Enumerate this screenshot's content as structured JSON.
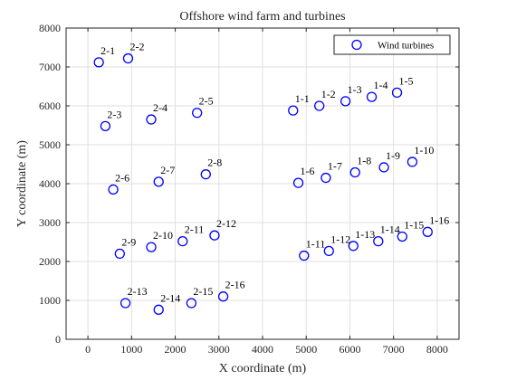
{
  "chart_data": {
    "type": "scatter",
    "title": "Offshore wind farm and turbines",
    "xlabel": "X coordinate (m)",
    "ylabel": "Y coordinate (m)",
    "xlim": [
      -500,
      8500
    ],
    "ylim": [
      0,
      8000
    ],
    "xticks": [
      0,
      1000,
      2000,
      3000,
      4000,
      5000,
      6000,
      7000,
      8000
    ],
    "yticks": [
      0,
      1000,
      2000,
      3000,
      4000,
      5000,
      6000,
      7000,
      8000
    ],
    "grid": true,
    "legend": {
      "entries": [
        "Wind turbines"
      ],
      "location": "top-right"
    },
    "series": [
      {
        "name": "Wind turbines",
        "marker": "circle",
        "color": "#0000ff",
        "points": [
          {
            "label": "1-1",
            "x": 4700,
            "y": 5880
          },
          {
            "label": "1-2",
            "x": 5300,
            "y": 6000
          },
          {
            "label": "1-3",
            "x": 5900,
            "y": 6120
          },
          {
            "label": "1-4",
            "x": 6500,
            "y": 6230
          },
          {
            "label": "1-5",
            "x": 7080,
            "y": 6340
          },
          {
            "label": "1-6",
            "x": 4820,
            "y": 4020
          },
          {
            "label": "1-7",
            "x": 5450,
            "y": 4150
          },
          {
            "label": "1-8",
            "x": 6120,
            "y": 4290
          },
          {
            "label": "1-9",
            "x": 6780,
            "y": 4420
          },
          {
            "label": "1-10",
            "x": 7430,
            "y": 4560
          },
          {
            "label": "1-11",
            "x": 4950,
            "y": 2150
          },
          {
            "label": "1-12",
            "x": 5520,
            "y": 2270
          },
          {
            "label": "1-13",
            "x": 6080,
            "y": 2400
          },
          {
            "label": "1-14",
            "x": 6650,
            "y": 2520
          },
          {
            "label": "1-15",
            "x": 7200,
            "y": 2640
          },
          {
            "label": "1-16",
            "x": 7780,
            "y": 2760
          },
          {
            "label": "2-1",
            "x": 250,
            "y": 7120
          },
          {
            "label": "2-2",
            "x": 920,
            "y": 7220
          },
          {
            "label": "2-3",
            "x": 400,
            "y": 5480
          },
          {
            "label": "2-4",
            "x": 1450,
            "y": 5650
          },
          {
            "label": "2-5",
            "x": 2500,
            "y": 5820
          },
          {
            "label": "2-6",
            "x": 580,
            "y": 3850
          },
          {
            "label": "2-7",
            "x": 1620,
            "y": 4050
          },
          {
            "label": "2-8",
            "x": 2700,
            "y": 4240
          },
          {
            "label": "2-9",
            "x": 730,
            "y": 2200
          },
          {
            "label": "2-10",
            "x": 1450,
            "y": 2370
          },
          {
            "label": "2-11",
            "x": 2170,
            "y": 2520
          },
          {
            "label": "2-12",
            "x": 2900,
            "y": 2670
          },
          {
            "label": "2-13",
            "x": 860,
            "y": 930
          },
          {
            "label": "2-14",
            "x": 1620,
            "y": 760
          },
          {
            "label": "2-15",
            "x": 2370,
            "y": 930
          },
          {
            "label": "2-16",
            "x": 3100,
            "y": 1100
          }
        ]
      }
    ]
  }
}
